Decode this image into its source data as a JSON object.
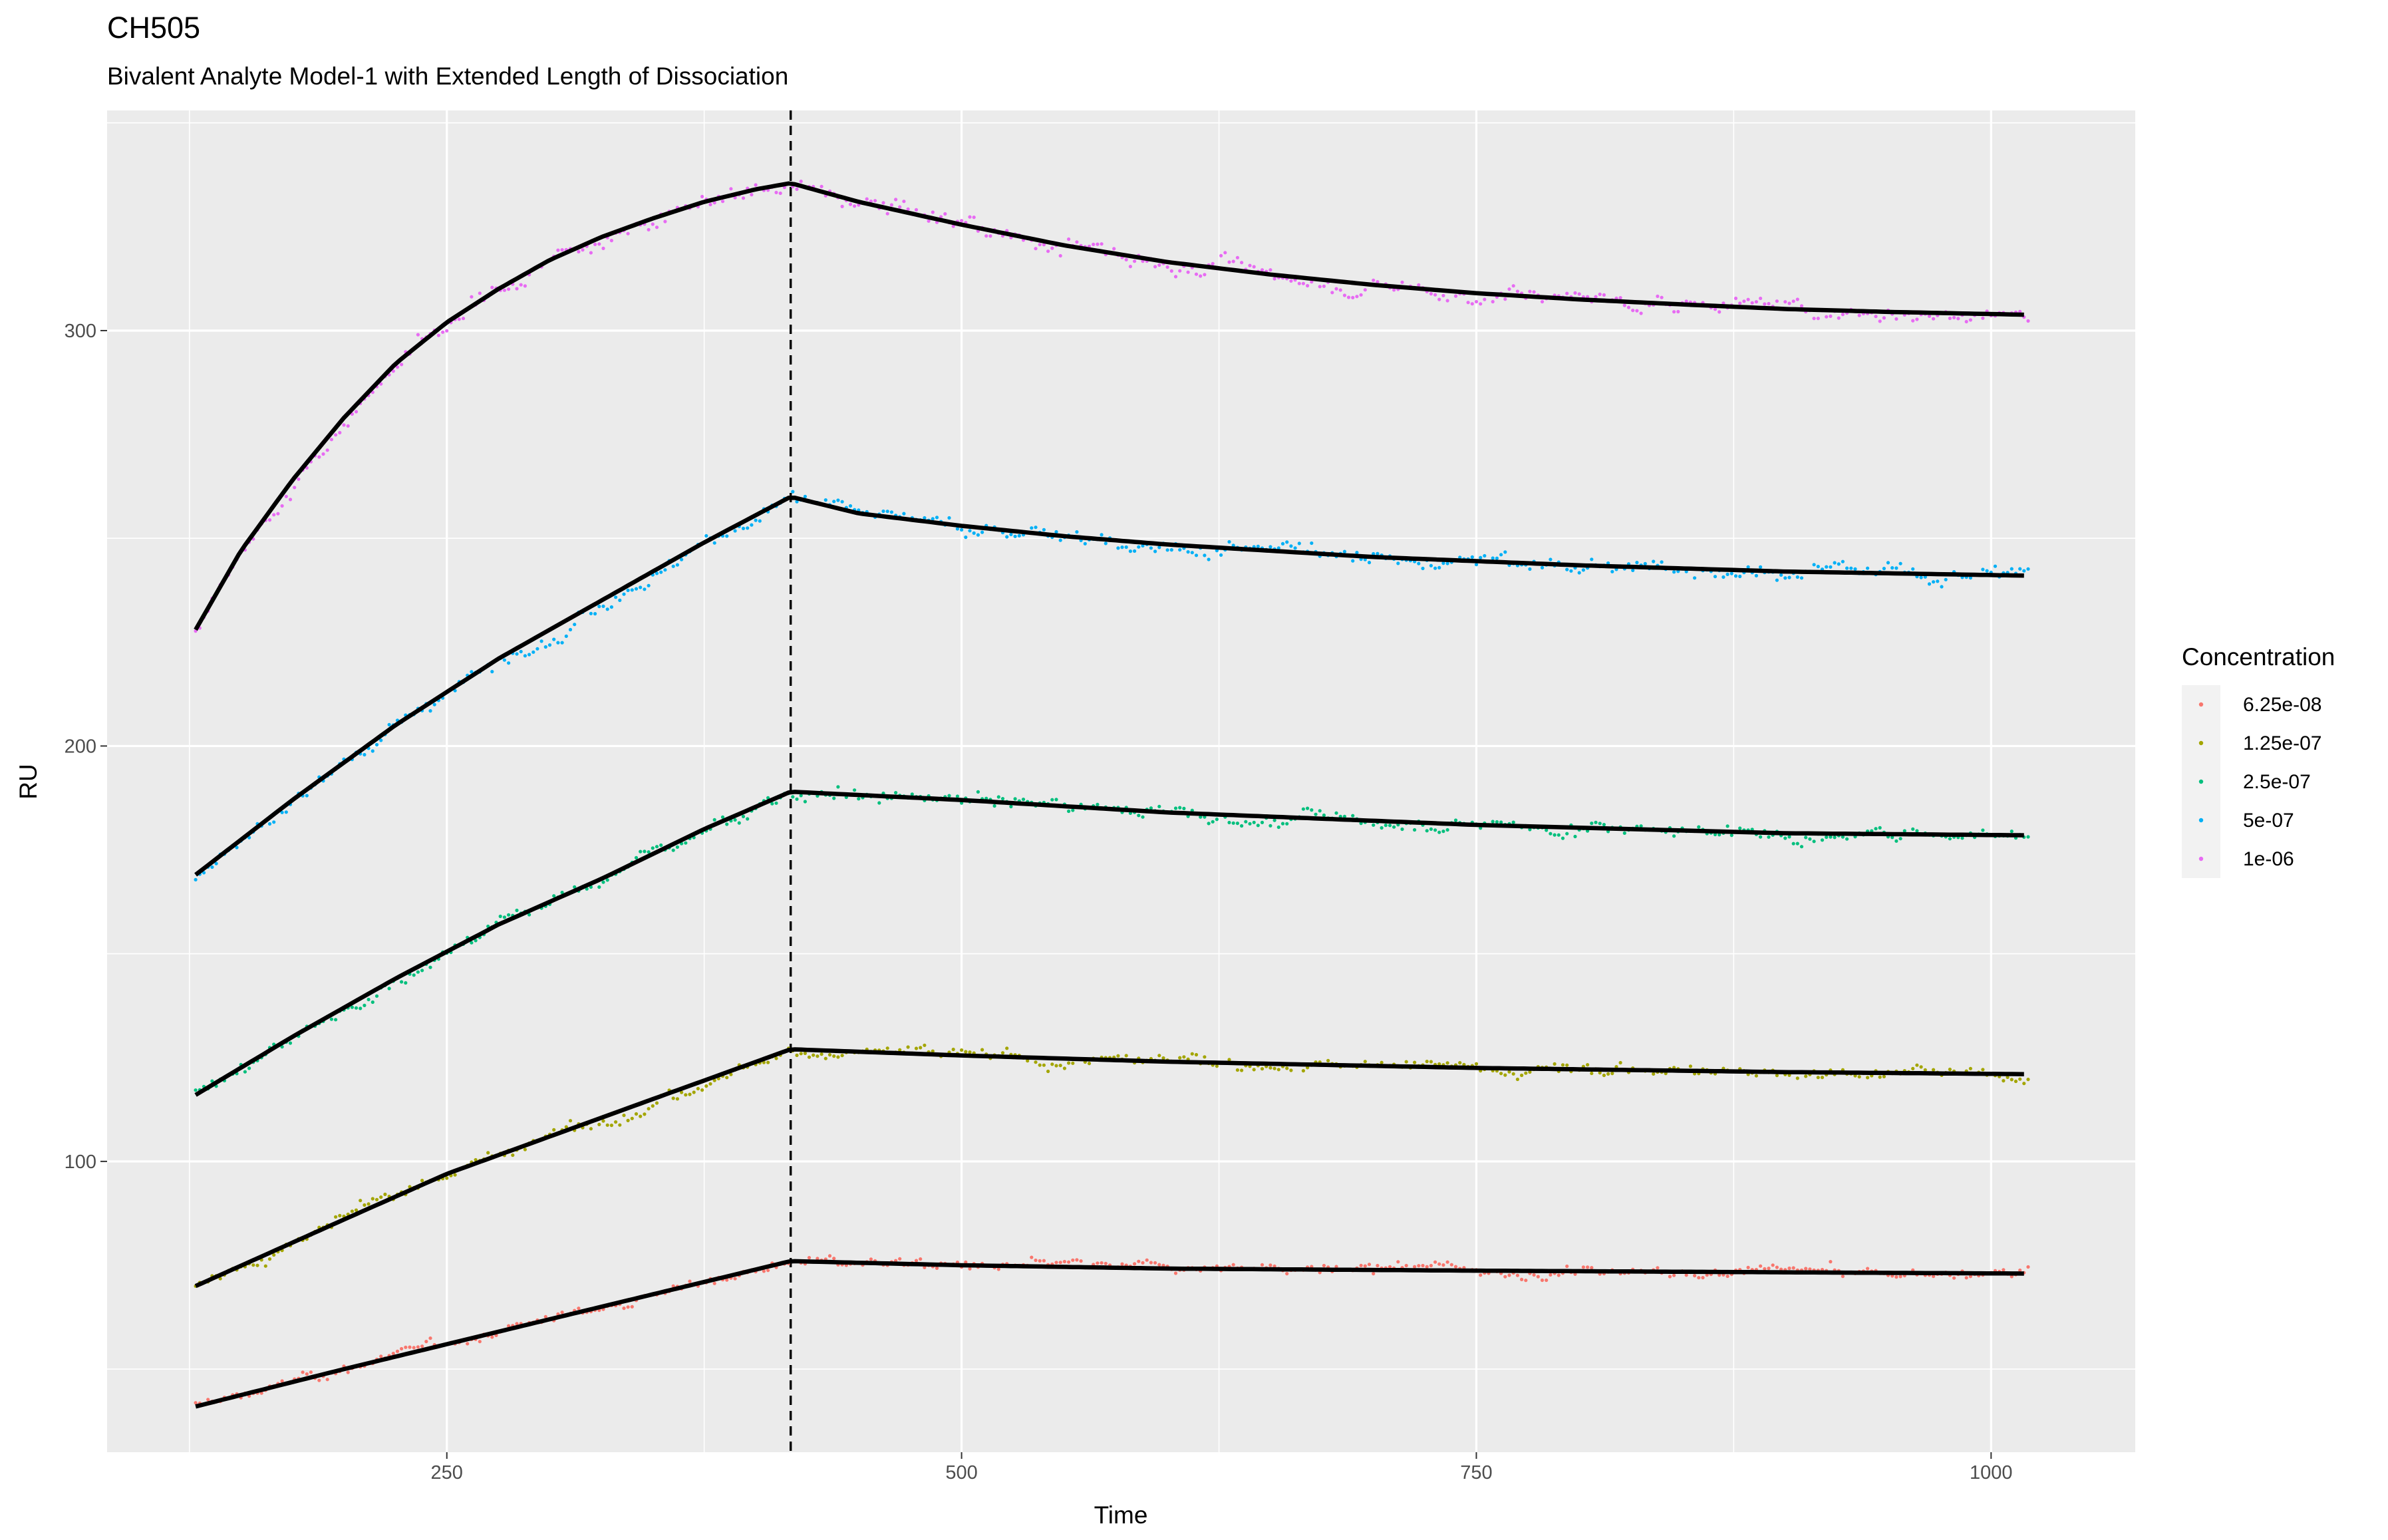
{
  "chart_data": {
    "type": "scatter",
    "title": "CH505",
    "subtitle": "Bivalent Analyte Model-1 with Extended Length of Dissociation",
    "xlabel": "Time",
    "ylabel": "RU",
    "xlim": [
      85,
      1070
    ],
    "ylim": [
      30,
      353
    ],
    "x_ticks": [
      250,
      500,
      750,
      1000
    ],
    "y_ticks": [
      100,
      200,
      300
    ],
    "x_tick_labels": [
      "250",
      "500",
      "750",
      "1000"
    ],
    "y_tick_labels": [
      "100",
      "200",
      "300"
    ],
    "grid": true,
    "legend_position": "right",
    "legend_title": "Concentration",
    "vline": {
      "x": 417,
      "style": "dashed"
    },
    "association": {
      "start": 128,
      "end": 417
    },
    "dissociation_end": 1018,
    "series": [
      {
        "name": "6.25e-08",
        "color": "#F8766D",
        "fit_points": [
          [
            128,
            41
          ],
          [
            200,
            50
          ],
          [
            250,
            56
          ],
          [
            300,
            62
          ],
          [
            350,
            68
          ],
          [
            417,
            76
          ],
          [
            500,
            75
          ],
          [
            600,
            74.2
          ],
          [
            750,
            73.7
          ],
          [
            900,
            73.3
          ],
          [
            1018,
            73
          ]
        ],
        "scatter_noise": 1.5
      },
      {
        "name": "1.25e-07",
        "color": "#A3A500",
        "fit_points": [
          [
            128,
            70
          ],
          [
            200,
            86
          ],
          [
            250,
            97
          ],
          [
            300,
            106
          ],
          [
            350,
            115
          ],
          [
            417,
            127
          ],
          [
            500,
            125.5
          ],
          [
            600,
            124
          ],
          [
            750,
            122.5
          ],
          [
            900,
            121.5
          ],
          [
            1018,
            121
          ]
        ],
        "scatter_noise": 1.8
      },
      {
        "name": "2.5e-07",
        "color": "#00BF7D",
        "fit_points": [
          [
            128,
            116
          ],
          [
            175,
            130
          ],
          [
            225,
            144
          ],
          [
            275,
            157
          ],
          [
            325,
            168
          ],
          [
            375,
            180
          ],
          [
            417,
            189
          ],
          [
            500,
            187
          ],
          [
            600,
            184
          ],
          [
            750,
            181
          ],
          [
            900,
            179
          ],
          [
            1018,
            178.5
          ]
        ],
        "scatter_noise": 2.0
      },
      {
        "name": "5e-07",
        "color": "#00B0F6",
        "fit_points": [
          [
            128,
            169
          ],
          [
            175,
            187
          ],
          [
            225,
            205
          ],
          [
            275,
            221
          ],
          [
            325,
            235
          ],
          [
            375,
            249
          ],
          [
            417,
            260
          ],
          [
            450,
            256
          ],
          [
            500,
            253
          ],
          [
            550,
            250.5
          ],
          [
            600,
            248.5
          ],
          [
            700,
            245.5
          ],
          [
            800,
            243.5
          ],
          [
            900,
            242
          ],
          [
            1018,
            241
          ]
        ],
        "scatter_noise": 2.2
      },
      {
        "name": "1e-06",
        "color": "#E76BF3",
        "fit_points": [
          [
            128,
            228
          ],
          [
            150,
            247
          ],
          [
            175,
            264
          ],
          [
            200,
            279
          ],
          [
            225,
            292
          ],
          [
            250,
            302
          ],
          [
            275,
            310
          ],
          [
            300,
            317
          ],
          [
            325,
            322.5
          ],
          [
            350,
            327
          ],
          [
            375,
            331
          ],
          [
            400,
            334
          ],
          [
            417,
            335.5
          ],
          [
            450,
            331
          ],
          [
            500,
            325.5
          ],
          [
            550,
            320.5
          ],
          [
            600,
            316.5
          ],
          [
            650,
            313.5
          ],
          [
            700,
            311
          ],
          [
            750,
            309
          ],
          [
            800,
            307.5
          ],
          [
            850,
            306.3
          ],
          [
            900,
            305.2
          ],
          [
            950,
            304.5
          ],
          [
            1018,
            303.8
          ]
        ],
        "scatter_noise": 2.4
      }
    ]
  }
}
